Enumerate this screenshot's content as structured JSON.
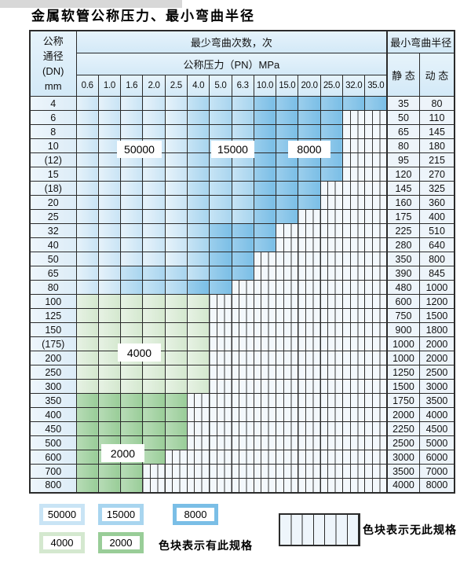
{
  "page_title": "金属软管公称压力、最小弯曲半径",
  "table": {
    "header": {
      "dn_label_lines": [
        "公称",
        "通径",
        "(DN)",
        "mm"
      ],
      "bend_times_label": "最少弯曲次数，次",
      "pressure_label": "公称压力（PN）MPa",
      "radius_label": "最小弯曲半径",
      "static_label": "静 态",
      "dynamic_label": "动 态",
      "pressure_columns": [
        "0.6",
        "1.0",
        "1.6",
        "2.0",
        "2.5",
        "4.0",
        "5.0",
        "6.3",
        "10.0",
        "15.0",
        "20.0",
        "25.0",
        "32.0",
        "35.0"
      ]
    },
    "cell_code_meaning": {
      "A": "50000次",
      "B": "15000次",
      "C": "8000次",
      "D": "4000次",
      "E": "2000次",
      "-": "无此规格"
    },
    "rows": [
      {
        "dn": "4",
        "cells": "AAAAABBBCCCCCC",
        "static": "35",
        "dynamic": "80"
      },
      {
        "dn": "6",
        "cells": "AAAAABBBCCCC--",
        "static": "50",
        "dynamic": "110"
      },
      {
        "dn": "8",
        "cells": "AAAAABBBCCCC--",
        "static": "65",
        "dynamic": "145"
      },
      {
        "dn": "10",
        "cells": "AAAAABBBCCCC--",
        "static": "80",
        "dynamic": "180"
      },
      {
        "dn": "(12)",
        "cells": "AAAAABBBCCCC--",
        "static": "95",
        "dynamic": "215"
      },
      {
        "dn": "15",
        "cells": "AAAAABBBCCCC--",
        "static": "120",
        "dynamic": "270"
      },
      {
        "dn": "(18)",
        "cells": "AAAAABBBCCC---",
        "static": "145",
        "dynamic": "325"
      },
      {
        "dn": "20",
        "cells": "AAAAABBBCCC---",
        "static": "160",
        "dynamic": "360"
      },
      {
        "dn": "25",
        "cells": "AAAAABBBCC----",
        "static": "175",
        "dynamic": "400"
      },
      {
        "dn": "32",
        "cells": "AAAAABCCC-----",
        "static": "225",
        "dynamic": "510"
      },
      {
        "dn": "40",
        "cells": "AAAAABCCC-----",
        "static": "280",
        "dynamic": "640"
      },
      {
        "dn": "50",
        "cells": "AAAAABCC------",
        "static": "350",
        "dynamic": "800"
      },
      {
        "dn": "65",
        "cells": "AABBBBCC------",
        "static": "390",
        "dynamic": "845"
      },
      {
        "dn": "80",
        "cells": "AABBBCC-------",
        "static": "480",
        "dynamic": "1000"
      },
      {
        "dn": "100",
        "cells": "DDDDDD--------",
        "static": "600",
        "dynamic": "1200"
      },
      {
        "dn": "125",
        "cells": "DDDDDD--------",
        "static": "750",
        "dynamic": "1500"
      },
      {
        "dn": "150",
        "cells": "DDDDDD--------",
        "static": "900",
        "dynamic": "1800"
      },
      {
        "dn": "(175)",
        "cells": "DDDDDD--------",
        "static": "1000",
        "dynamic": "2000"
      },
      {
        "dn": "200",
        "cells": "DDDDDD--------",
        "static": "1000",
        "dynamic": "2000"
      },
      {
        "dn": "250",
        "cells": "DDDDDD--------",
        "static": "1250",
        "dynamic": "2500"
      },
      {
        "dn": "300",
        "cells": "DDDDDD--------",
        "static": "1500",
        "dynamic": "3000"
      },
      {
        "dn": "350",
        "cells": "EEEEE---------",
        "static": "1750",
        "dynamic": "3500"
      },
      {
        "dn": "400",
        "cells": "EEEEE---------",
        "static": "2000",
        "dynamic": "4000"
      },
      {
        "dn": "450",
        "cells": "EEEEE---------",
        "static": "2250",
        "dynamic": "4500"
      },
      {
        "dn": "500",
        "cells": "EEEEE---------",
        "static": "2500",
        "dynamic": "5000"
      },
      {
        "dn": "600",
        "cells": "EEEE----------",
        "static": "3000",
        "dynamic": "6000"
      },
      {
        "dn": "700",
        "cells": "EEE-----------",
        "static": "3500",
        "dynamic": "7000"
      },
      {
        "dn": "800",
        "cells": "EEE-----------",
        "static": "4000",
        "dynamic": "8000"
      }
    ]
  },
  "region_labels": [
    "50000",
    "15000",
    "8000",
    "4000",
    "2000"
  ],
  "legend": {
    "swatches": [
      {
        "value": "50000",
        "color": "#c9e4f5"
      },
      {
        "value": "15000",
        "color": "#a8d5ef"
      },
      {
        "value": "8000",
        "color": "#7abee6"
      },
      {
        "value": "4000",
        "color": "#d4e8cf"
      },
      {
        "value": "2000",
        "color": "#99cd98"
      }
    ],
    "has_spec_text": "色块表示有此规格",
    "no_spec_text": "色块表示无此规格"
  },
  "colors": {
    "blue_50000": "#c9e4f5",
    "blue_15000": "#a8d5ef",
    "blue_8000": "#7abee6",
    "green_4000": "#d4e8cf",
    "green_2000": "#99cd98",
    "grid_line": "#2b2b2b",
    "header_bg": "#d9ecf8"
  }
}
